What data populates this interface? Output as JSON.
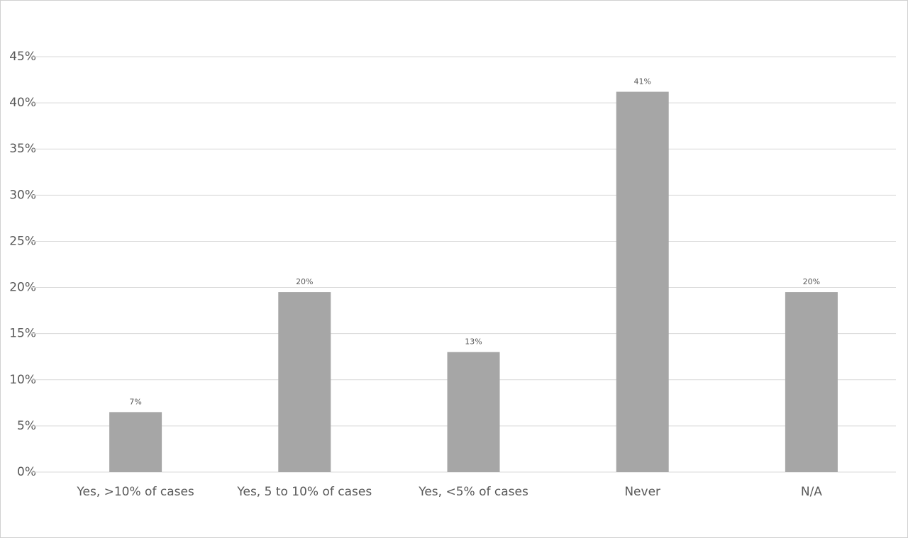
{
  "chart_data": {
    "type": "bar",
    "categories": [
      "Yes, >10% of cases",
      "Yes, 5 to 10% of cases",
      "Yes, <5% of cases",
      "Never",
      "N/A"
    ],
    "values": [
      6.5,
      19.5,
      13,
      41.2,
      19.5
    ],
    "value_labels": [
      "7%",
      "20%",
      "13%",
      "41%",
      "20%"
    ],
    "color": "#a6a6a6",
    "ylim": [
      0,
      45
    ],
    "yticks": [
      {
        "value": 0,
        "label": "0%"
      },
      {
        "value": 5,
        "label": "5%"
      },
      {
        "value": 10,
        "label": "10%"
      },
      {
        "value": 15,
        "label": "15%"
      },
      {
        "value": 20,
        "label": "20%"
      },
      {
        "value": 25,
        "label": "25%"
      },
      {
        "value": 30,
        "label": "30%"
      },
      {
        "value": 35,
        "label": "35%"
      },
      {
        "value": 40,
        "label": "40%"
      },
      {
        "value": 45,
        "label": "45%"
      }
    ],
    "grid": true
  }
}
